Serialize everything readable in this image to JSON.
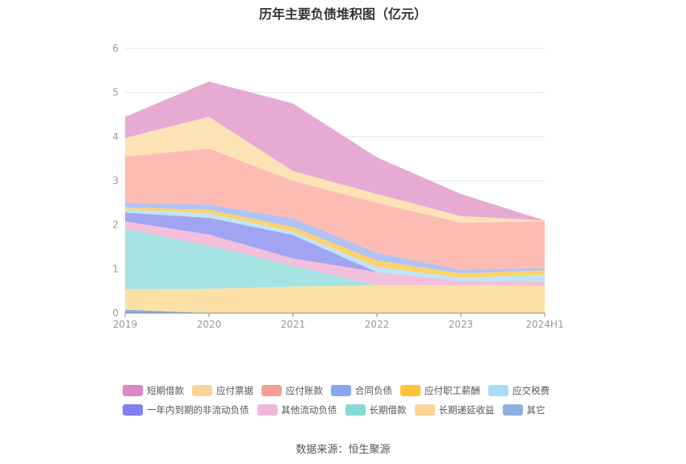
{
  "title": "历年主要负债堆积图（亿元）",
  "source": "数据来源：恒生聚源",
  "chart_data": {
    "type": "area",
    "stacked": true,
    "title": "历年主要负债堆积图（亿元）",
    "categories": [
      "2019",
      "2020",
      "2021",
      "2022",
      "2023",
      "2024H1"
    ],
    "ylim": [
      0,
      6
    ],
    "yticks": [
      "0",
      "1",
      "2",
      "3",
      "4",
      "5",
      "6"
    ],
    "grid": true,
    "legend_position": "bottom",
    "series": [
      {
        "name": "其它",
        "color": "#8fb0de",
        "values": [
          0.08,
          0.0,
          0.0,
          0.0,
          0.0,
          0.0
        ]
      },
      {
        "name": "长期递延收益",
        "color": "#fde0a6",
        "values": [
          0.46,
          0.55,
          0.6,
          0.63,
          0.63,
          0.62
        ]
      },
      {
        "name": "长期借款",
        "color": "#a6e3e3",
        "values": [
          1.37,
          0.98,
          0.47,
          0.0,
          0.0,
          0.0
        ]
      },
      {
        "name": "其他流动负债",
        "color": "#f2bfdc",
        "values": [
          0.17,
          0.25,
          0.17,
          0.3,
          0.1,
          0.1
        ]
      },
      {
        "name": "一年内到期的非流动负债",
        "color": "#a0a4f2",
        "values": [
          0.2,
          0.38,
          0.53,
          0.0,
          0.0,
          0.0
        ]
      },
      {
        "name": "应交税费",
        "color": "#bfe4f8",
        "values": [
          0.07,
          0.1,
          0.08,
          0.12,
          0.07,
          0.15
        ]
      },
      {
        "name": "应付职工薪酬",
        "color": "#fdd36a",
        "values": [
          0.05,
          0.08,
          0.1,
          0.14,
          0.1,
          0.1
        ]
      },
      {
        "name": "合同负债",
        "color": "#b2c2f4",
        "values": [
          0.1,
          0.12,
          0.2,
          0.18,
          0.08,
          0.05
        ]
      },
      {
        "name": "应付账款",
        "color": "#fcbcb4",
        "values": [
          1.05,
          1.27,
          0.85,
          1.13,
          1.07,
          1.06
        ]
      },
      {
        "name": "应付票据",
        "color": "#fde2b6",
        "values": [
          0.42,
          0.72,
          0.22,
          0.2,
          0.15,
          0.02
        ]
      },
      {
        "name": "短期借款",
        "color": "#e6aad3",
        "values": [
          0.48,
          0.8,
          1.53,
          0.83,
          0.5,
          0.0
        ]
      }
    ]
  },
  "legend": {
    "rows": [
      [
        {
          "label": "短期借款",
          "color": "#dd88c2"
        },
        {
          "label": "应付票据",
          "color": "#fdd39a"
        },
        {
          "label": "应付账款",
          "color": "#f99d90"
        },
        {
          "label": "合同负债",
          "color": "#88a6f2"
        },
        {
          "label": "应付职工薪酬",
          "color": "#fcc33a"
        },
        {
          "label": "应交税费",
          "color": "#a6dcf8"
        }
      ],
      [
        {
          "label": "一年内到期的非流动负债",
          "color": "#7f7ff2"
        },
        {
          "label": "其他流动负债",
          "color": "#ecb8da"
        },
        {
          "label": "长期借款",
          "color": "#88d8d8"
        },
        {
          "label": "长期递延收益",
          "color": "#fdd39a"
        },
        {
          "label": "其它",
          "color": "#8fb0de"
        }
      ]
    ]
  }
}
